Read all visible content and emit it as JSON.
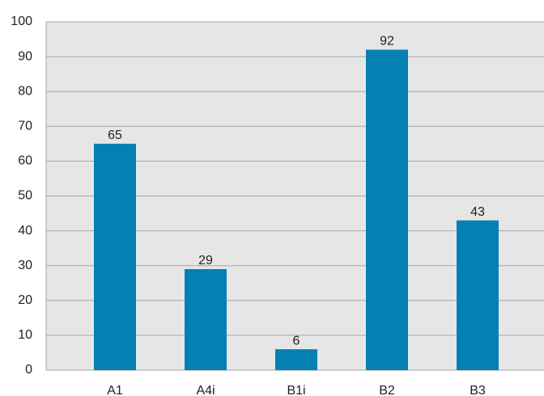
{
  "chart_data": {
    "type": "bar",
    "categories": [
      "A1",
      "A4i",
      "B1i",
      "B2",
      "B3"
    ],
    "values": [
      65,
      29,
      6,
      92,
      43
    ],
    "color": "#0680b3",
    "ylim": [
      0,
      100
    ],
    "yticks": [
      0,
      10,
      20,
      30,
      40,
      50,
      60,
      70,
      80,
      90,
      100
    ],
    "grid": true
  }
}
